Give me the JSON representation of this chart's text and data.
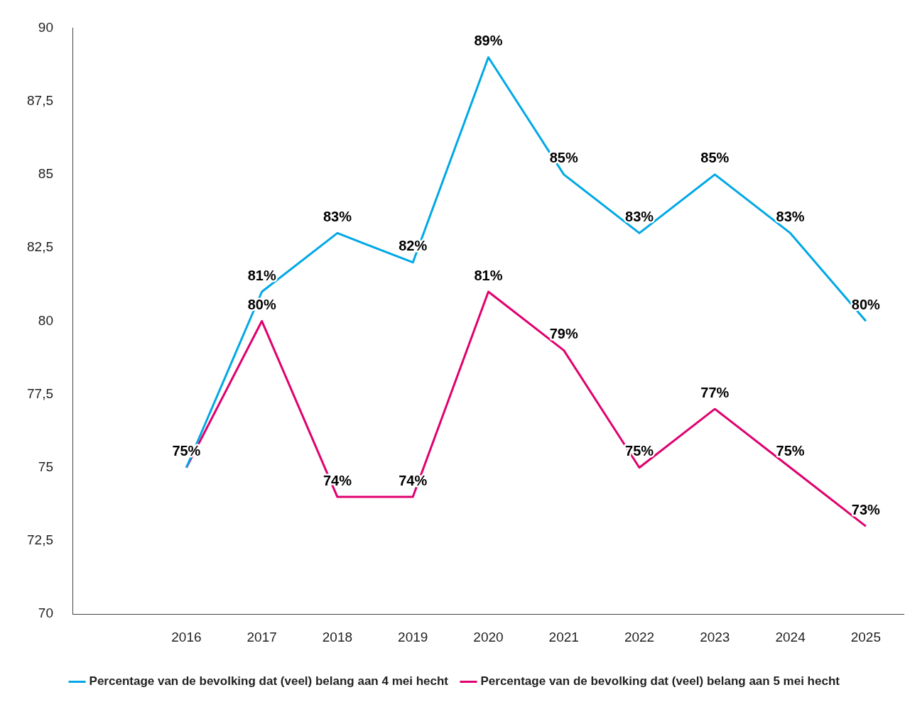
{
  "chart_data": {
    "type": "line",
    "categories": [
      null,
      "2016",
      "2017",
      "2018",
      "2019",
      "2020",
      "2021",
      "2022",
      "2023",
      "2024",
      "2025"
    ],
    "series": [
      {
        "name": "Percentage van de bevolking dat (veel) belang aan 4 mei hecht",
        "color": "#00a8e6",
        "values": [
          null,
          75,
          81,
          83,
          82,
          89,
          85,
          83,
          85,
          83,
          80
        ],
        "value_labels": [
          null,
          null,
          "81%",
          "83%",
          "82%",
          "89%",
          "85%",
          "83%",
          "85%",
          "83%",
          "80%"
        ]
      },
      {
        "name": "Percentage van de bevolking dat (veel) belang aan 5 mei hecht",
        "color": "#e0006e",
        "values": [
          null,
          75,
          80,
          74,
          74,
          81,
          79,
          75,
          77,
          75,
          73
        ],
        "value_labels": [
          null,
          "75%",
          "80%",
          "74%",
          "74%",
          "81%",
          "79%",
          "75%",
          "77%",
          "75%",
          "73%"
        ]
      }
    ],
    "ylim": [
      70,
      90
    ],
    "yticks": [
      70,
      {
        "value": 72.5,
        "label": "72,5"
      },
      75,
      {
        "value": 77.5,
        "label": "77,5"
      },
      80,
      {
        "value": 82.5,
        "label": "82,5"
      },
      85,
      {
        "value": 87.5,
        "label": "87,5"
      },
      90
    ],
    "grid": false,
    "legend": "bottom",
    "marker": "none",
    "line_style": "solid"
  }
}
